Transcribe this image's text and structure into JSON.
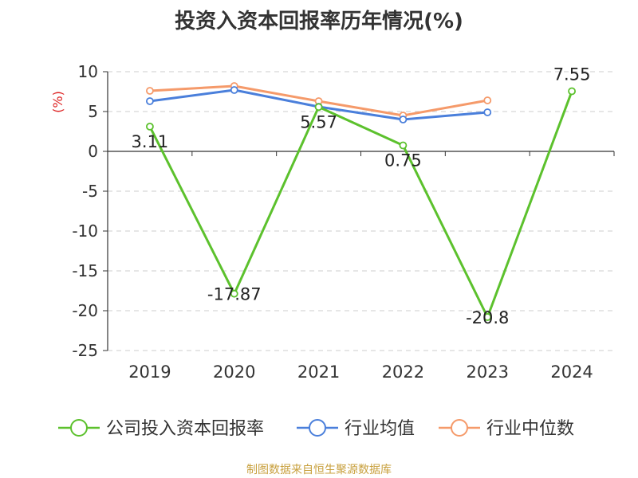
{
  "chart_data": {
    "type": "line",
    "title": "投资入资本回报率历年情况(%)",
    "ylabel": "(%)",
    "xlabel": "",
    "categories": [
      "2019",
      "2020",
      "2021",
      "2022",
      "2023",
      "2024"
    ],
    "ylim": [
      -25,
      10
    ],
    "yticks": [
      10,
      5,
      0,
      -5,
      -10,
      -15,
      -20,
      -25
    ],
    "grid": true,
    "legend_position": "bottom",
    "series": [
      {
        "name": "公司投入资本回报率",
        "color": "#5cc12d",
        "values": [
          3.11,
          -17.87,
          5.57,
          0.75,
          -20.8,
          7.55
        ],
        "labels": [
          "3.11",
          "-17.87",
          "5.57",
          "0.75",
          "-20.8",
          "7.55"
        ]
      },
      {
        "name": "行业均值",
        "color": "#4a7fdb",
        "values": [
          6.3,
          7.7,
          5.6,
          4.0,
          4.9,
          null
        ]
      },
      {
        "name": "行业中位数",
        "color": "#f59a6a",
        "values": [
          7.6,
          8.2,
          6.3,
          4.5,
          6.4,
          null
        ]
      }
    ]
  },
  "source": "制图数据来自恒生聚源数据库"
}
